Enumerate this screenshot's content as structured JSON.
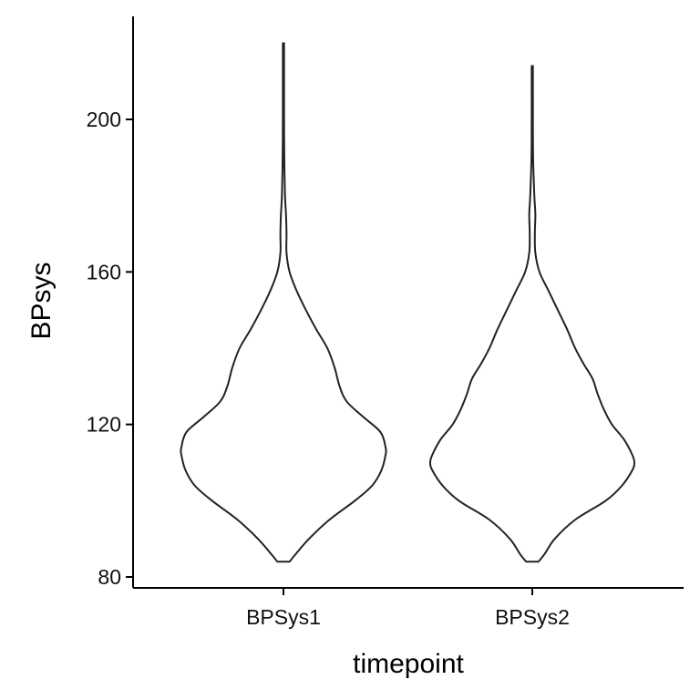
{
  "chart_data": {
    "type": "violin",
    "xlabel": "timepoint",
    "ylabel": "BPsys",
    "categories": [
      "BPSys1",
      "BPSys2"
    ],
    "yticks": [
      80,
      120,
      160,
      200
    ],
    "ylim": [
      78,
      227
    ],
    "grid": false,
    "legend": "none",
    "series": [
      {
        "category": "BPSys1",
        "min": 84,
        "max": 220,
        "density": [
          [
            84,
            0.06
          ],
          [
            86,
            0.12
          ],
          [
            90,
            0.25
          ],
          [
            95,
            0.45
          ],
          [
            100,
            0.7
          ],
          [
            104,
            0.87
          ],
          [
            108,
            0.96
          ],
          [
            112,
            1.0
          ],
          [
            114,
            1.0
          ],
          [
            118,
            0.95
          ],
          [
            122,
            0.78
          ],
          [
            126,
            0.62
          ],
          [
            130,
            0.55
          ],
          [
            135,
            0.5
          ],
          [
            140,
            0.43
          ],
          [
            145,
            0.32
          ],
          [
            150,
            0.22
          ],
          [
            155,
            0.13
          ],
          [
            160,
            0.06
          ],
          [
            165,
            0.03
          ],
          [
            170,
            0.03
          ],
          [
            175,
            0.025
          ],
          [
            180,
            0.015
          ],
          [
            190,
            0.008
          ],
          [
            200,
            0.006
          ],
          [
            210,
            0.006
          ],
          [
            220,
            0.006
          ]
        ]
      },
      {
        "category": "BPSys2",
        "min": 84,
        "max": 214,
        "density": [
          [
            84,
            0.06
          ],
          [
            86,
            0.12
          ],
          [
            90,
            0.22
          ],
          [
            95,
            0.42
          ],
          [
            100,
            0.72
          ],
          [
            104,
            0.88
          ],
          [
            108,
            0.98
          ],
          [
            110,
            1.0
          ],
          [
            112,
            0.98
          ],
          [
            116,
            0.9
          ],
          [
            120,
            0.78
          ],
          [
            124,
            0.7
          ],
          [
            128,
            0.64
          ],
          [
            132,
            0.59
          ],
          [
            136,
            0.5
          ],
          [
            140,
            0.42
          ],
          [
            145,
            0.34
          ],
          [
            150,
            0.25
          ],
          [
            155,
            0.16
          ],
          [
            160,
            0.07
          ],
          [
            165,
            0.03
          ],
          [
            170,
            0.025
          ],
          [
            175,
            0.03
          ],
          [
            180,
            0.02
          ],
          [
            190,
            0.008
          ],
          [
            200,
            0.006
          ],
          [
            214,
            0.006
          ]
        ]
      }
    ]
  }
}
